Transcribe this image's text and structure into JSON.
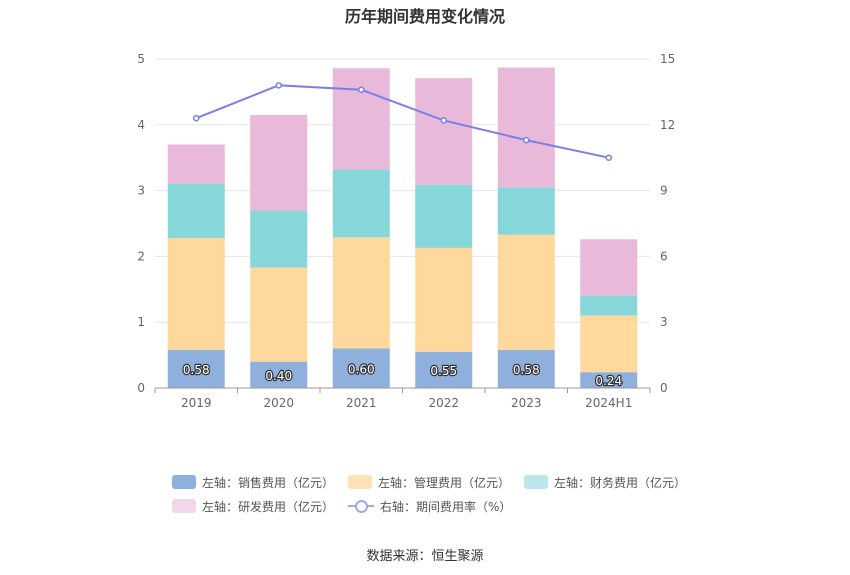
{
  "chart_data": {
    "type": "bar",
    "title": "历年期间费用变化情况",
    "categories": [
      "2019",
      "2020",
      "2021",
      "2022",
      "2023",
      "2024H1"
    ],
    "y_left": {
      "ylim": [
        0,
        5
      ],
      "ticks": [
        "0",
        "1",
        "2",
        "3",
        "4",
        "5"
      ]
    },
    "y_right": {
      "ylim": [
        0,
        15
      ],
      "ticks": [
        "0",
        "3",
        "6",
        "9",
        "12",
        "15"
      ]
    },
    "stacked": true,
    "series": [
      {
        "name": "左轴：销售费用（亿元）",
        "axis": "left",
        "color": "#8fb0dd",
        "values": [
          0.58,
          0.4,
          0.6,
          0.55,
          0.58,
          0.24
        ],
        "data_labels": [
          "0.58",
          "0.40",
          "0.60",
          "0.55",
          "0.58",
          "0.24"
        ]
      },
      {
        "name": "左轴：管理费用（亿元）",
        "axis": "left",
        "color": "#fed89c",
        "values": [
          1.7,
          1.43,
          1.69,
          1.58,
          1.75,
          0.86
        ]
      },
      {
        "name": "左轴：财务费用（亿元）",
        "axis": "left",
        "color": "#87d6da",
        "values": [
          0.82,
          0.87,
          1.03,
          0.96,
          0.72,
          0.3
        ]
      },
      {
        "name": "左轴：研发费用（亿元）",
        "axis": "left",
        "color": "#e8b9d9",
        "values": [
          0.6,
          1.45,
          1.54,
          1.62,
          1.82,
          0.86
        ]
      },
      {
        "name": "右轴：期间费用率（%）",
        "axis": "right",
        "type": "line",
        "color": "#7b7fe6",
        "values": [
          12.3,
          13.8,
          13.6,
          12.2,
          11.3,
          10.5
        ]
      }
    ],
    "grid": true,
    "legend": "bottom"
  },
  "footer": {
    "source": "数据来源：恒生聚源"
  }
}
